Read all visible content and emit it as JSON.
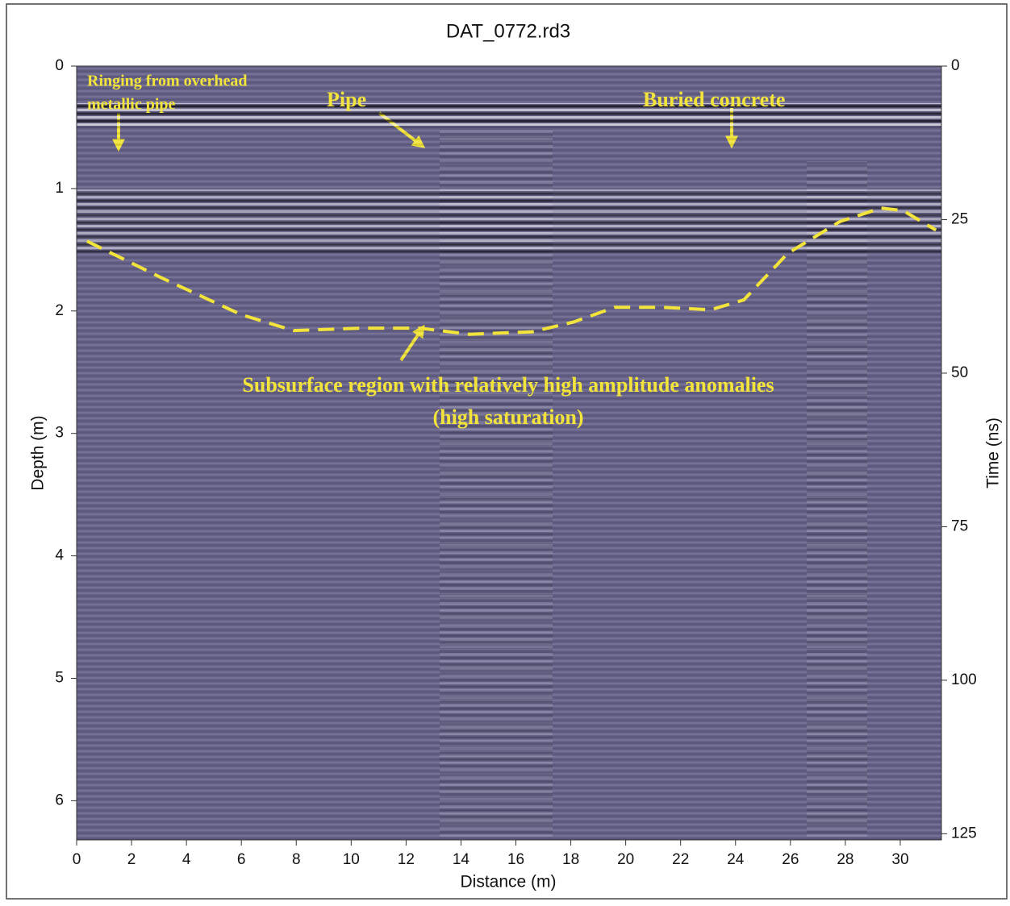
{
  "chart_data": {
    "type": "radargram",
    "title": "DAT_0772.rd3",
    "xlabel": "Distance (m)",
    "ylabel": "Depth (m)",
    "y2label": "Time (ns)",
    "xlim": [
      0,
      31.5
    ],
    "xticks": [
      0,
      2,
      4,
      6,
      8,
      10,
      12,
      14,
      16,
      18,
      20,
      22,
      24,
      26,
      28,
      30
    ],
    "ylim": [
      6.32,
      0
    ],
    "yticks": [
      0,
      1,
      2,
      3,
      4,
      5,
      6
    ],
    "y2lim": [
      126,
      0
    ],
    "y2ticks": [
      0,
      25,
      50,
      75,
      100,
      125
    ],
    "background_color": "#66628a",
    "boundary": {
      "color": "#f2e43a",
      "x": [
        0.38,
        3.1,
        6.0,
        7.9,
        10.4,
        12.5,
        14.3,
        16.6,
        18.1,
        19.6,
        21.3,
        23.1,
        24.3,
        25.9,
        27.8,
        29.3,
        30.1,
        31.3
      ],
      "values": [
        1.43,
        1.73,
        2.03,
        2.16,
        2.14,
        2.14,
        2.19,
        2.17,
        2.09,
        1.97,
        1.97,
        1.99,
        1.91,
        1.53,
        1.27,
        1.16,
        1.18,
        1.34
      ]
    },
    "annotations": [
      "Ringing from overhead",
      "metallic pipe",
      "Pipe",
      "Buried concrete",
      "Subsurface region with relatively high amplitude anomalies",
      "(high saturation)"
    ]
  }
}
